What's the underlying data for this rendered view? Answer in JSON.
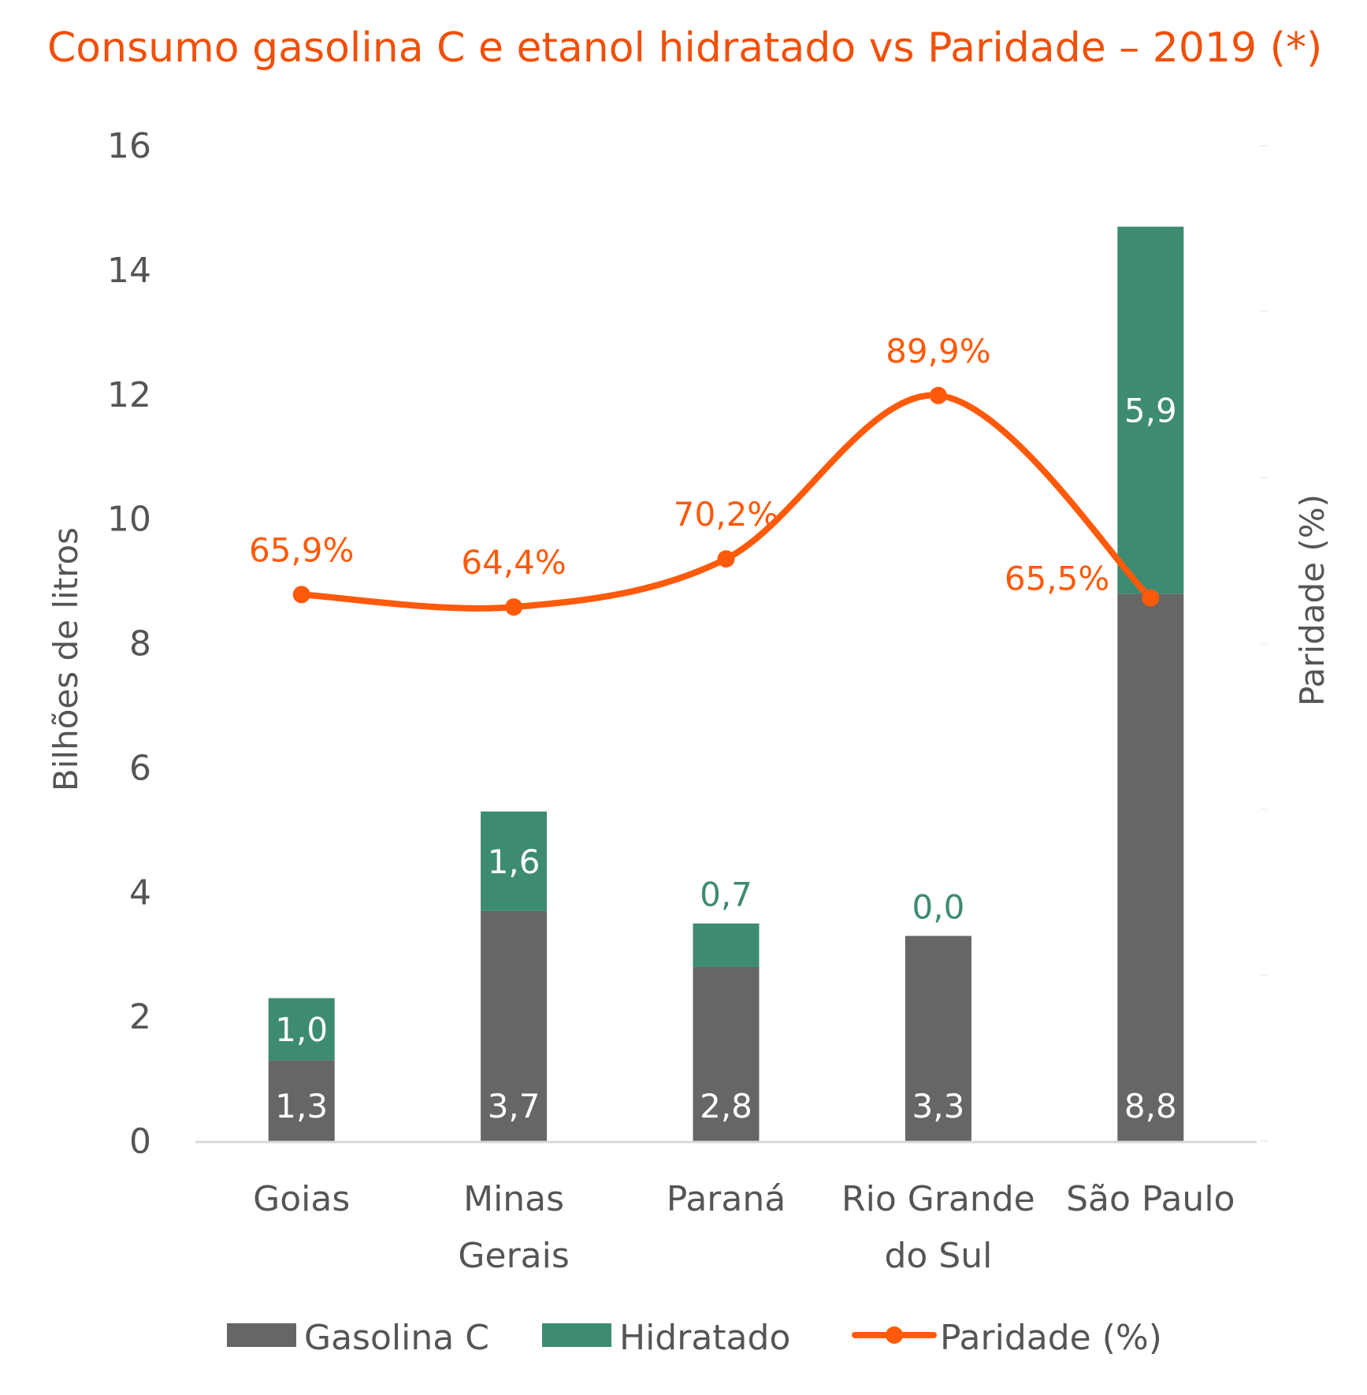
{
  "colors": {
    "title": "#F0500A",
    "gasolina": "#666666",
    "hidratado": "#3D8B73",
    "paridade": "#FF5A0A",
    "axis_text": "#555555",
    "axis_line": "#D9D9D9",
    "hidratado_label_outside": "#3D8B73",
    "bar_label_inside": "#FFFFFF"
  },
  "chart_data": {
    "type": "bar",
    "stacked": true,
    "title": "Consumo gasolina C e etanol hidratado vs Paridade – 2019 (*)",
    "ylabel": "Bilhões de litros",
    "y2label": "Paridade (%)",
    "ylim": [
      0,
      16
    ],
    "yticks": [
      "0",
      "2",
      "4",
      "6",
      "8",
      "10",
      "12",
      "14",
      "16"
    ],
    "categories": [
      "Goias",
      "Minas Gerais",
      "Paraná",
      "Rio Grande do Sul",
      "São Paulo"
    ],
    "category_lines": [
      [
        "Goias"
      ],
      [
        "Minas",
        "Gerais"
      ],
      [
        "Paraná"
      ],
      [
        "Rio Grande",
        "do Sul"
      ],
      [
        "São Paulo"
      ]
    ],
    "series": [
      {
        "name": "Gasolina C",
        "kind": "bar",
        "values": [
          1.3,
          3.7,
          2.8,
          3.3,
          8.8
        ],
        "labels": [
          "1,3",
          "3,7",
          "2,8",
          "3,3",
          "8,8"
        ]
      },
      {
        "name": "Hidratado",
        "kind": "bar",
        "values": [
          1.0,
          1.6,
          0.7,
          0.0,
          5.9
        ],
        "labels": [
          "1,0",
          "1,6",
          "0,7",
          "0,0",
          "5,9"
        ]
      },
      {
        "name": "Paridade (%)",
        "kind": "line",
        "axis": "secondary",
        "values": [
          65.9,
          64.4,
          70.2,
          89.9,
          65.5
        ],
        "labels": [
          "65,9%",
          "64,4%",
          "70,2%",
          "89,9%",
          "65,5%"
        ]
      }
    ],
    "legend_position": "bottom",
    "grid": false
  }
}
